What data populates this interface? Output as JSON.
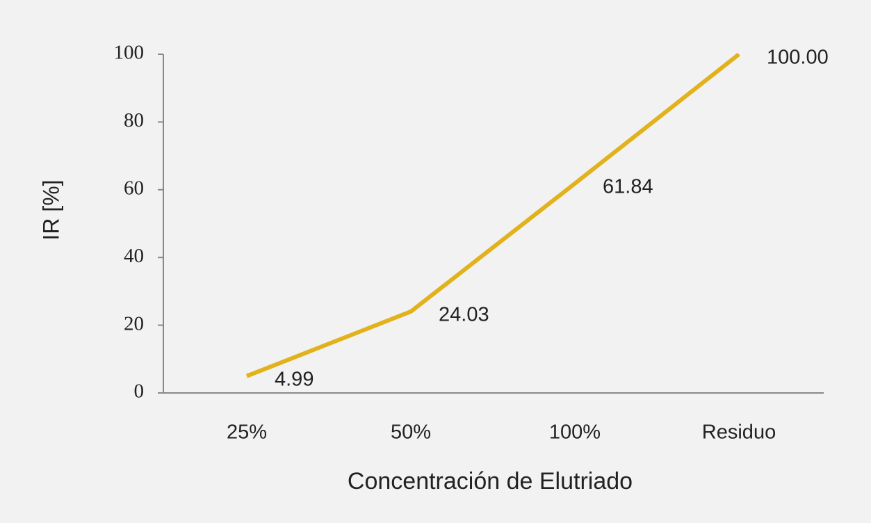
{
  "chart_data": {
    "type": "line",
    "categories": [
      "25%",
      "50%",
      "100%",
      "Residuo"
    ],
    "series": [
      {
        "name": "IR",
        "color": "#e2b21c",
        "values": [
          4.99,
          24.03,
          61.84,
          100
        ],
        "value_labels": [
          "4.99",
          "24.03",
          "61.84",
          "100.00"
        ]
      }
    ],
    "x_label": "Concentración de Elutriado",
    "y_label": "IR [%]",
    "ylim": [
      0,
      100
    ],
    "yticks": [
      0,
      20,
      40,
      60,
      80,
      100
    ],
    "grid": false
  }
}
